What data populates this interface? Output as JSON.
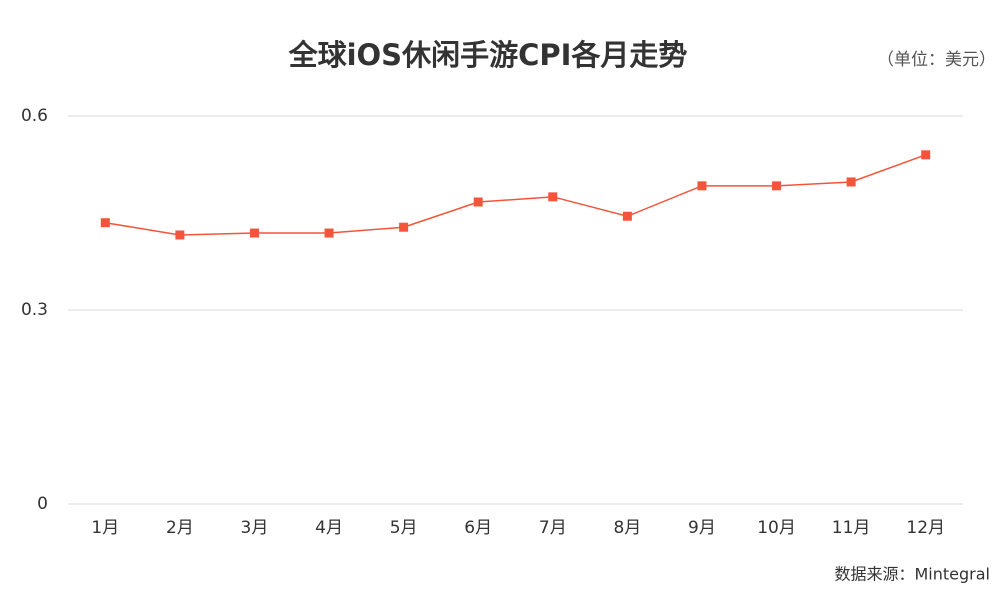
{
  "chart_data": {
    "type": "line",
    "title": "全球iOS休闲手游CPI各月走势",
    "unit_note": "（单位：美元）",
    "source": "数据来源：Mintegral",
    "categories": [
      "1月",
      "2月",
      "3月",
      "4月",
      "5月",
      "6月",
      "7月",
      "8月",
      "9月",
      "10月",
      "11月",
      "12月"
    ],
    "series": [
      {
        "name": "CPI",
        "color": "#f4553a",
        "values": [
          0.435,
          0.416,
          0.419,
          0.419,
          0.428,
          0.467,
          0.475,
          0.445,
          0.492,
          0.492,
          0.498,
          0.54
        ]
      }
    ],
    "ylim": [
      0,
      0.6
    ],
    "yticks": [
      0,
      0.3,
      0.6
    ],
    "grid": true
  }
}
